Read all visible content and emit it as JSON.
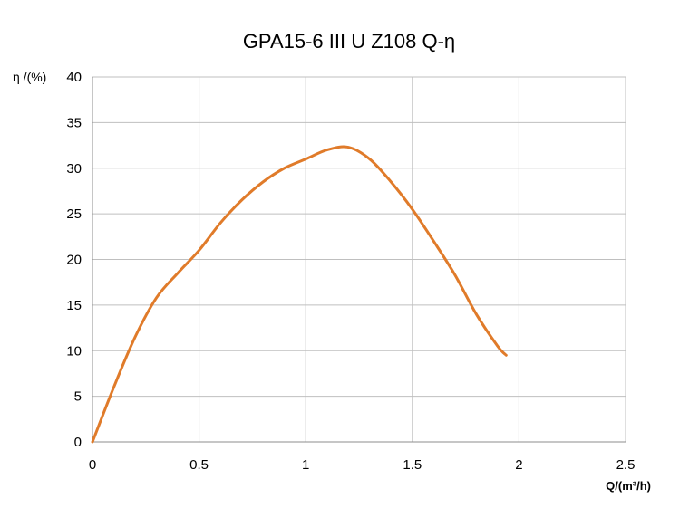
{
  "chart_data": {
    "type": "line",
    "title": "GPA15-6 III U Z108 Q-η",
    "xlabel": "Q/(m³/h)",
    "ylabel": "η /(%)",
    "xlim": [
      0,
      2.5
    ],
    "ylim": [
      0,
      40
    ],
    "x_ticks": [
      "0",
      "0.5",
      "1",
      "1.5",
      "2",
      "2.5"
    ],
    "y_ticks": [
      "0",
      "5",
      "10",
      "15",
      "20",
      "25",
      "30",
      "35",
      "40"
    ],
    "grid": true,
    "legend": "none",
    "series": [
      {
        "color": "#e07b2a",
        "x": [
          0.0,
          0.1,
          0.2,
          0.3,
          0.4,
          0.5,
          0.6,
          0.7,
          0.8,
          0.9,
          1.0,
          1.1,
          1.2,
          1.3,
          1.4,
          1.5,
          1.6,
          1.7,
          1.8,
          1.9,
          1.94
        ],
        "y": [
          0.0,
          6.0,
          11.5,
          15.8,
          18.5,
          21.0,
          24.0,
          26.5,
          28.5,
          30.0,
          31.0,
          32.0,
          32.3,
          31.0,
          28.5,
          25.5,
          22.0,
          18.3,
          14.0,
          10.5,
          9.5
        ]
      }
    ]
  }
}
